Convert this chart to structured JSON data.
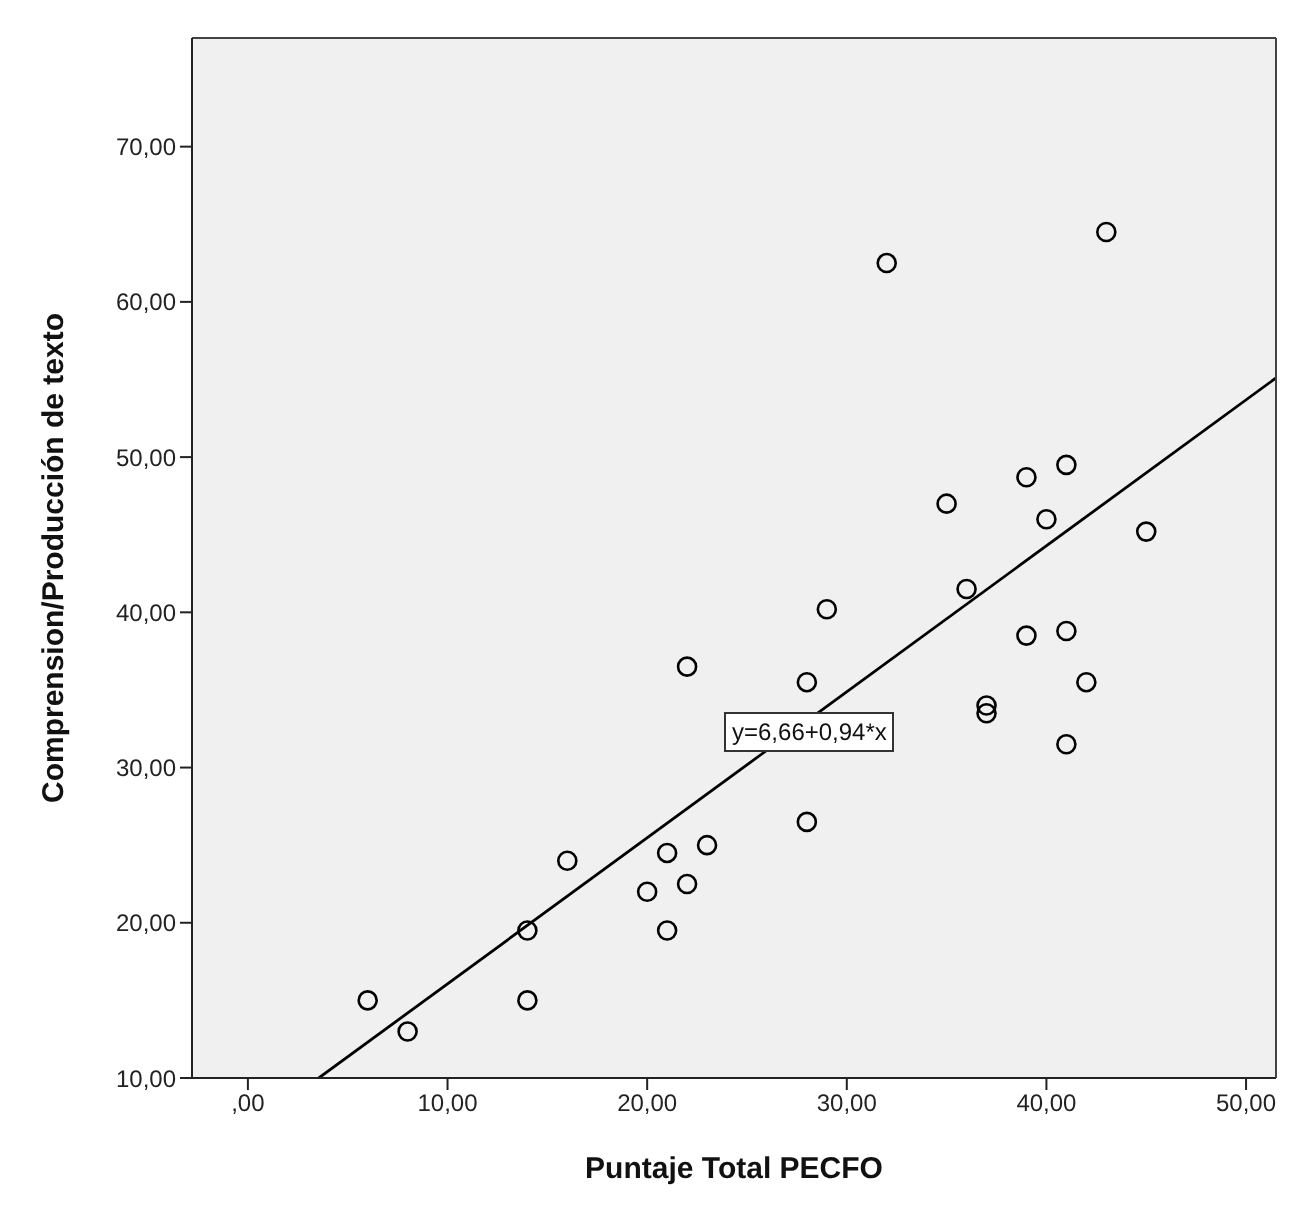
{
  "chart_data": {
    "type": "scatter",
    "xlabel": "Puntaje Total PECFO",
    "ylabel": "Comprension/Producción de texto",
    "x": [
      6,
      8,
      14,
      14,
      16,
      20,
      21,
      21,
      22,
      23,
      22,
      28,
      28,
      29,
      36,
      37,
      37,
      39,
      41,
      42,
      41,
      35,
      39,
      41,
      40,
      45,
      32,
      43
    ],
    "series": [
      {
        "color": "#000000",
        "marker": "circle",
        "values": [
          15,
          13,
          19.5,
          15,
          24,
          22,
          24.5,
          19.5,
          22.5,
          25,
          36.5,
          35.5,
          26.5,
          40.2,
          41.5,
          34,
          33.5,
          38.5,
          38.8,
          35.5,
          31.5,
          47,
          48.7,
          49.5,
          46,
          45.2,
          62.5,
          64.5
        ]
      },
      {
        "type": "line",
        "color": "#000000",
        "marker": "none",
        "line_style": "solid",
        "x": [
          3.55,
          51.5
        ],
        "values": [
          10,
          55.1
        ]
      }
    ],
    "annotations": [
      "y=6,66+0,94*x"
    ],
    "xlim": [
      -2.8,
      51.5
    ],
    "ylim": [
      10,
      77
    ],
    "xticks": [
      {
        "value": 0,
        "label": ",00"
      },
      {
        "value": 10,
        "label": "10,00"
      },
      {
        "value": 20,
        "label": "20,00"
      },
      {
        "value": 30,
        "label": "30,00"
      },
      {
        "value": 40,
        "label": "40,00"
      },
      {
        "value": 50,
        "label": "50,00"
      }
    ],
    "yticks": [
      {
        "value": 10,
        "label": "10,00"
      },
      {
        "value": 20,
        "label": "20,00"
      },
      {
        "value": 30,
        "label": "30,00"
      },
      {
        "value": 40,
        "label": "40,00"
      },
      {
        "value": 50,
        "label": "50,00"
      },
      {
        "value": 60,
        "label": "60,00"
      },
      {
        "value": 70,
        "label": "70,00"
      }
    ],
    "grid": false,
    "legend": false
  }
}
